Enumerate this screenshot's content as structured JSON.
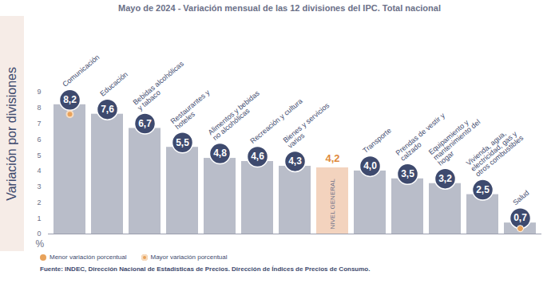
{
  "chart_data": {
    "type": "bar",
    "title": "Mayo de 2024 - Variación mensual de las 12 divisiones del IPC. Total nacional",
    "y_label": "Variación por divisiones",
    "unit_label": "%",
    "categories": [
      "Comunicación",
      "Educación",
      "Bebidas alcohólicas y tabaco",
      "Restaurantes y hoteles",
      "Alimentos y bebidas no alcohólicas",
      "Recreación y cultura",
      "Bienes y servicios varios",
      "NIVEL GENERAL",
      "Transporte",
      "Prendas de vestir y calzado",
      "Equipamiento y mantenimiento del hogar",
      "Vivienda, agua, electricidad, gas y otros combustibles",
      "Salud"
    ],
    "values": [
      8.2,
      7.6,
      6.7,
      5.5,
      4.8,
      4.6,
      4.3,
      4.2,
      4.0,
      3.5,
      3.2,
      2.5,
      0.7
    ],
    "value_labels": [
      "8,2",
      "7,6",
      "6,7",
      "5,5",
      "4,8",
      "4,6",
      "4,3",
      "4,2",
      "4,0",
      "3,5",
      "3,2",
      "2,5",
      "0,7"
    ],
    "colors": [
      "#b9bdc9",
      "#b9bdc9",
      "#b9bdc9",
      "#b9bdc9",
      "#b9bdc9",
      "#b9bdc9",
      "#b9bdc9",
      "#f3d3be",
      "#b9bdc9",
      "#b9bdc9",
      "#b9bdc9",
      "#b9bdc9",
      "#b9bdc9"
    ],
    "ylim": [
      0,
      9
    ],
    "yticks": [
      0,
      1,
      2,
      3,
      4,
      5,
      6,
      7,
      8,
      9
    ],
    "grid": false,
    "data_labels": true,
    "tick_labels": "y",
    "annotations": [
      "Menor variación porcentual",
      "Mayor variación porcentual"
    ],
    "source": "Fuente: INDEC, Dirección Nacional de Estadísticas de Precios. Dirección de Índices de Precios de Consumo."
  }
}
